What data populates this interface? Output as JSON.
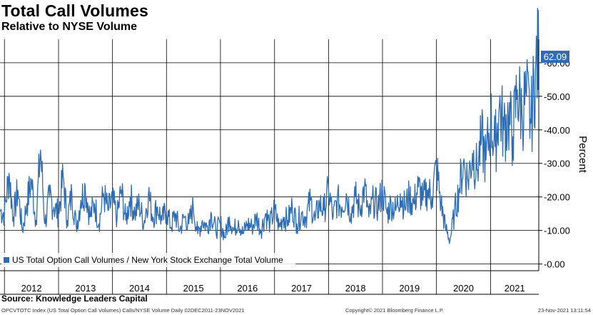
{
  "header": {
    "title": "Total Call Volumes",
    "subtitle": "Relative to NYSE Volume"
  },
  "footer": {
    "source": "Source: Knowledge Leaders Capital",
    "index_line": "OPCVTOTC Index (US Total Option Call Volumes) Calls/NYSE Volume  Daily 02DEC2011-23NOV2021",
    "copyright": "Copyright© 2021 Bloomberg Finance L.P.",
    "timestamp": "23-Nov-2021 13:11:54"
  },
  "colors": {
    "series": "#2e6db4",
    "grid": "#000000",
    "badge": "#2e6db4",
    "badge_text": "#ffffff"
  },
  "chart_data": {
    "type": "line",
    "title": "Total Call Volumes",
    "subtitle": "Relative to NYSE Volume",
    "ylabel": "Percent",
    "xlabel": "",
    "ylim": [
      -2,
      67
    ],
    "y_ticks": [
      0,
      10,
      20,
      30,
      40,
      50,
      60
    ],
    "y_tick_labels": [
      "0.00",
      "10.00",
      "20.00",
      "30.00",
      "40.00",
      "50.00",
      "60.00"
    ],
    "x_range": [
      "2011-12-02",
      "2021-11-23"
    ],
    "x_ticks": [
      "2012",
      "2013",
      "2014",
      "2015",
      "2016",
      "2017",
      "2018",
      "2019",
      "2020",
      "2021"
    ],
    "grid": true,
    "legend": {
      "position": "bottom-left",
      "entries": [
        "US Total Option Call Volumes / New York Stock Exchange Total Volume"
      ]
    },
    "last_value": 62.09,
    "last_value_label": "62.09",
    "series": [
      {
        "name": "US Total Option Call Volumes / New York Stock Exchange Total Volume",
        "x": [
          "2011-12-02",
          "2012-01-01",
          "2012-02-01",
          "2012-03-01",
          "2012-04-01",
          "2012-05-01",
          "2012-06-01",
          "2012-07-01",
          "2012-08-01",
          "2012-09-01",
          "2012-10-01",
          "2012-11-01",
          "2012-12-01",
          "2013-01-01",
          "2013-02-01",
          "2013-03-01",
          "2013-04-01",
          "2013-05-01",
          "2013-06-01",
          "2013-07-01",
          "2013-08-01",
          "2013-09-01",
          "2013-10-01",
          "2013-11-01",
          "2013-12-01",
          "2014-01-01",
          "2014-02-01",
          "2014-03-01",
          "2014-04-01",
          "2014-05-01",
          "2014-06-01",
          "2014-07-01",
          "2014-08-01",
          "2014-09-01",
          "2014-10-01",
          "2014-11-01",
          "2014-12-01",
          "2015-01-01",
          "2015-02-01",
          "2015-03-01",
          "2015-04-01",
          "2015-05-01",
          "2015-06-01",
          "2015-07-01",
          "2015-08-01",
          "2015-09-01",
          "2015-10-01",
          "2015-11-01",
          "2015-12-01",
          "2016-01-01",
          "2016-02-01",
          "2016-03-01",
          "2016-04-01",
          "2016-05-01",
          "2016-06-01",
          "2016-07-01",
          "2016-08-01",
          "2016-09-01",
          "2016-10-01",
          "2016-11-01",
          "2016-12-01",
          "2017-01-01",
          "2017-02-01",
          "2017-03-01",
          "2017-04-01",
          "2017-05-01",
          "2017-06-01",
          "2017-07-01",
          "2017-08-01",
          "2017-09-01",
          "2017-10-01",
          "2017-11-01",
          "2017-12-01",
          "2018-01-01",
          "2018-02-01",
          "2018-03-01",
          "2018-04-01",
          "2018-05-01",
          "2018-06-01",
          "2018-07-01",
          "2018-08-01",
          "2018-09-01",
          "2018-10-01",
          "2018-11-01",
          "2018-12-01",
          "2019-01-01",
          "2019-02-01",
          "2019-03-01",
          "2019-04-01",
          "2019-05-01",
          "2019-06-01",
          "2019-07-01",
          "2019-08-01",
          "2019-09-01",
          "2019-10-01",
          "2019-11-01",
          "2019-12-01",
          "2020-01-01",
          "2020-02-01",
          "2020-03-01",
          "2020-04-01",
          "2020-05-01",
          "2020-06-01",
          "2020-07-01",
          "2020-08-01",
          "2020-09-01",
          "2020-10-01",
          "2020-11-01",
          "2020-12-01",
          "2021-01-01",
          "2021-02-01",
          "2021-03-01",
          "2021-04-01",
          "2021-05-01",
          "2021-06-01",
          "2021-07-01",
          "2021-08-01",
          "2021-09-01",
          "2021-10-01",
          "2021-11-01",
          "2021-11-23"
        ],
        "values": [
          16,
          15,
          27,
          14,
          22,
          10,
          18,
          25,
          13,
          34,
          12,
          20,
          17,
          15,
          26,
          13,
          21,
          11,
          19,
          23,
          14,
          18,
          12,
          21,
          16,
          19,
          14,
          22,
          13,
          20,
          15,
          18,
          12,
          21,
          14,
          17,
          13,
          16,
          11,
          15,
          10,
          14,
          12,
          17,
          9,
          13,
          11,
          15,
          10,
          12,
          8,
          14,
          10,
          13,
          9,
          12,
          11,
          14,
          10,
          15,
          12,
          16,
          11,
          14,
          13,
          17,
          12,
          15,
          14,
          19,
          13,
          18,
          16,
          22,
          14,
          19,
          17,
          21,
          15,
          20,
          16,
          23,
          14,
          19,
          17,
          22,
          15,
          18,
          16,
          21,
          17,
          20,
          18,
          23,
          19,
          22,
          20,
          29,
          18,
          11,
          7,
          15,
          22,
          30,
          25,
          33,
          28,
          37,
          31,
          43,
          35,
          47,
          40,
          44,
          38,
          52,
          45,
          50,
          42,
          58,
          62.09
        ]
      }
    ]
  }
}
